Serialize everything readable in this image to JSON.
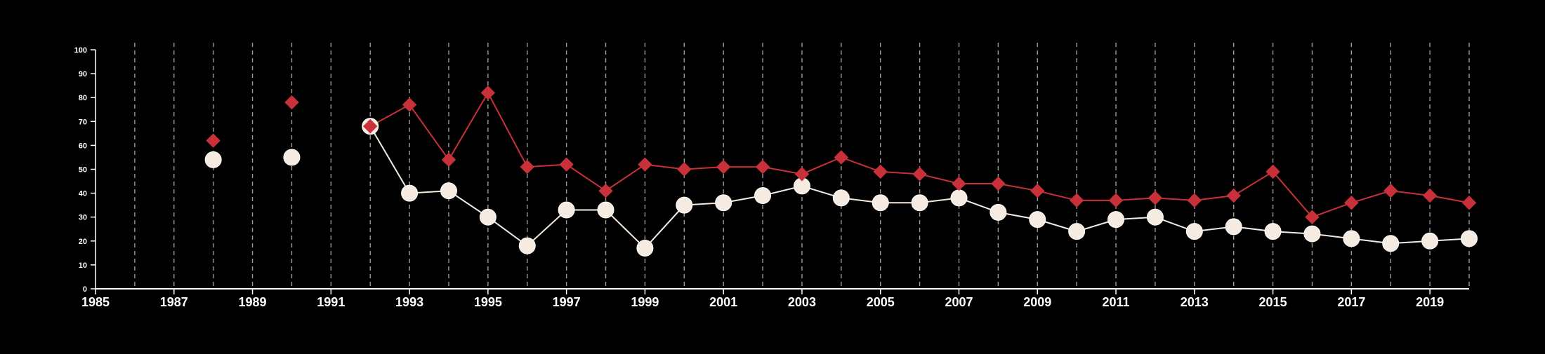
{
  "chart_data": {
    "type": "line",
    "xlim": [
      1985,
      2020
    ],
    "ylim": [
      0,
      100
    ],
    "x_ticks": [
      1985,
      1987,
      1989,
      1991,
      1993,
      1995,
      1997,
      1999,
      2001,
      2003,
      2005,
      2007,
      2009,
      2011,
      2013,
      2015,
      2017,
      2019
    ],
    "y_ticks": [
      0,
      10,
      20,
      30,
      40,
      50,
      60,
      70,
      80,
      90,
      100
    ],
    "x_tick_labels": [
      "1985",
      "1987",
      "1989",
      "1991",
      "1993",
      "1995",
      "1997",
      "1999",
      "2001",
      "2003",
      "2005",
      "2007",
      "2009",
      "2011",
      "2013",
      "2015",
      "2017",
      "2019"
    ],
    "y_tick_labels": [
      "0",
      "10",
      "20",
      "30",
      "40",
      "50",
      "60",
      "70",
      "80",
      "90",
      "100"
    ],
    "grid": "vertical dashed lines at every year",
    "series": [
      {
        "marker": "diamond",
        "color": "#c8313a",
        "points": [
          {
            "x": 1988,
            "y": 62
          },
          {
            "x": 1990,
            "y": 78
          },
          {
            "x": 1992,
            "y": 68
          },
          {
            "x": 1993,
            "y": 77
          },
          {
            "x": 1994,
            "y": 54
          },
          {
            "x": 1995,
            "y": 82
          },
          {
            "x": 1996,
            "y": 51
          },
          {
            "x": 1997,
            "y": 52
          },
          {
            "x": 1998,
            "y": 41
          },
          {
            "x": 1999,
            "y": 52
          },
          {
            "x": 2000,
            "y": 50
          },
          {
            "x": 2001,
            "y": 51
          },
          {
            "x": 2002,
            "y": 51
          },
          {
            "x": 2003,
            "y": 48
          },
          {
            "x": 2004,
            "y": 55
          },
          {
            "x": 2005,
            "y": 49
          },
          {
            "x": 2006,
            "y": 48
          },
          {
            "x": 2007,
            "y": 44
          },
          {
            "x": 2008,
            "y": 44
          },
          {
            "x": 2009,
            "y": 41
          },
          {
            "x": 2010,
            "y": 37
          },
          {
            "x": 2011,
            "y": 37
          },
          {
            "x": 2012,
            "y": 38
          },
          {
            "x": 2013,
            "y": 37
          },
          {
            "x": 2014,
            "y": 39
          },
          {
            "x": 2015,
            "y": 49
          },
          {
            "x": 2016,
            "y": 30
          },
          {
            "x": 2017,
            "y": 36
          },
          {
            "x": 2018,
            "y": 41
          },
          {
            "x": 2019,
            "y": 39
          },
          {
            "x": 2020,
            "y": 36
          }
        ]
      },
      {
        "marker": "circle",
        "color": "#f5ebe0",
        "points": [
          {
            "x": 1988,
            "y": 54
          },
          {
            "x": 1990,
            "y": 55
          },
          {
            "x": 1992,
            "y": 68
          },
          {
            "x": 1993,
            "y": 40
          },
          {
            "x": 1994,
            "y": 41
          },
          {
            "x": 1995,
            "y": 30
          },
          {
            "x": 1996,
            "y": 18
          },
          {
            "x": 1997,
            "y": 33
          },
          {
            "x": 1998,
            "y": 33
          },
          {
            "x": 1999,
            "y": 17
          },
          {
            "x": 2000,
            "y": 35
          },
          {
            "x": 2001,
            "y": 36
          },
          {
            "x": 2002,
            "y": 39
          },
          {
            "x": 2003,
            "y": 43
          },
          {
            "x": 2004,
            "y": 38
          },
          {
            "x": 2005,
            "y": 36
          },
          {
            "x": 2006,
            "y": 36
          },
          {
            "x": 2007,
            "y": 38
          },
          {
            "x": 2008,
            "y": 32
          },
          {
            "x": 2009,
            "y": 29
          },
          {
            "x": 2010,
            "y": 24
          },
          {
            "x": 2011,
            "y": 29
          },
          {
            "x": 2012,
            "y": 30
          },
          {
            "x": 2013,
            "y": 24
          },
          {
            "x": 2014,
            "y": 26
          },
          {
            "x": 2015,
            "y": 24
          },
          {
            "x": 2016,
            "y": 23
          },
          {
            "x": 2017,
            "y": 21
          },
          {
            "x": 2018,
            "y": 19
          },
          {
            "x": 2019,
            "y": 20
          },
          {
            "x": 2020,
            "y": 21
          }
        ]
      }
    ]
  },
  "colors": {
    "background": "#000000",
    "axis": "#ffffff",
    "grid": "#9a9a9a",
    "diamond_series": "#c8313a",
    "circle_series": "#f5ebe0"
  }
}
